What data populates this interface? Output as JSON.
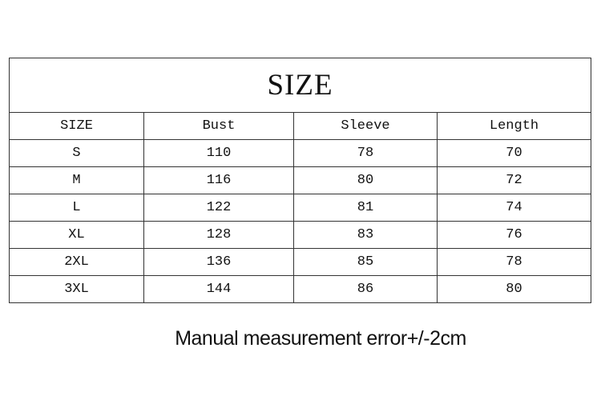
{
  "title": "SIZE",
  "headers": [
    "SIZE",
    "Bust",
    "Sleeve",
    "Length"
  ],
  "rows": [
    [
      "S",
      "110",
      "78",
      "70"
    ],
    [
      "M",
      "116",
      "80",
      "72"
    ],
    [
      "L",
      "122",
      "81",
      "74"
    ],
    [
      "XL",
      "128",
      "83",
      "76"
    ],
    [
      "2XL",
      "136",
      "85",
      "78"
    ],
    [
      "3XL",
      "144",
      "86",
      "80"
    ]
  ],
  "note": "Manual measurement error+/-2cm"
}
